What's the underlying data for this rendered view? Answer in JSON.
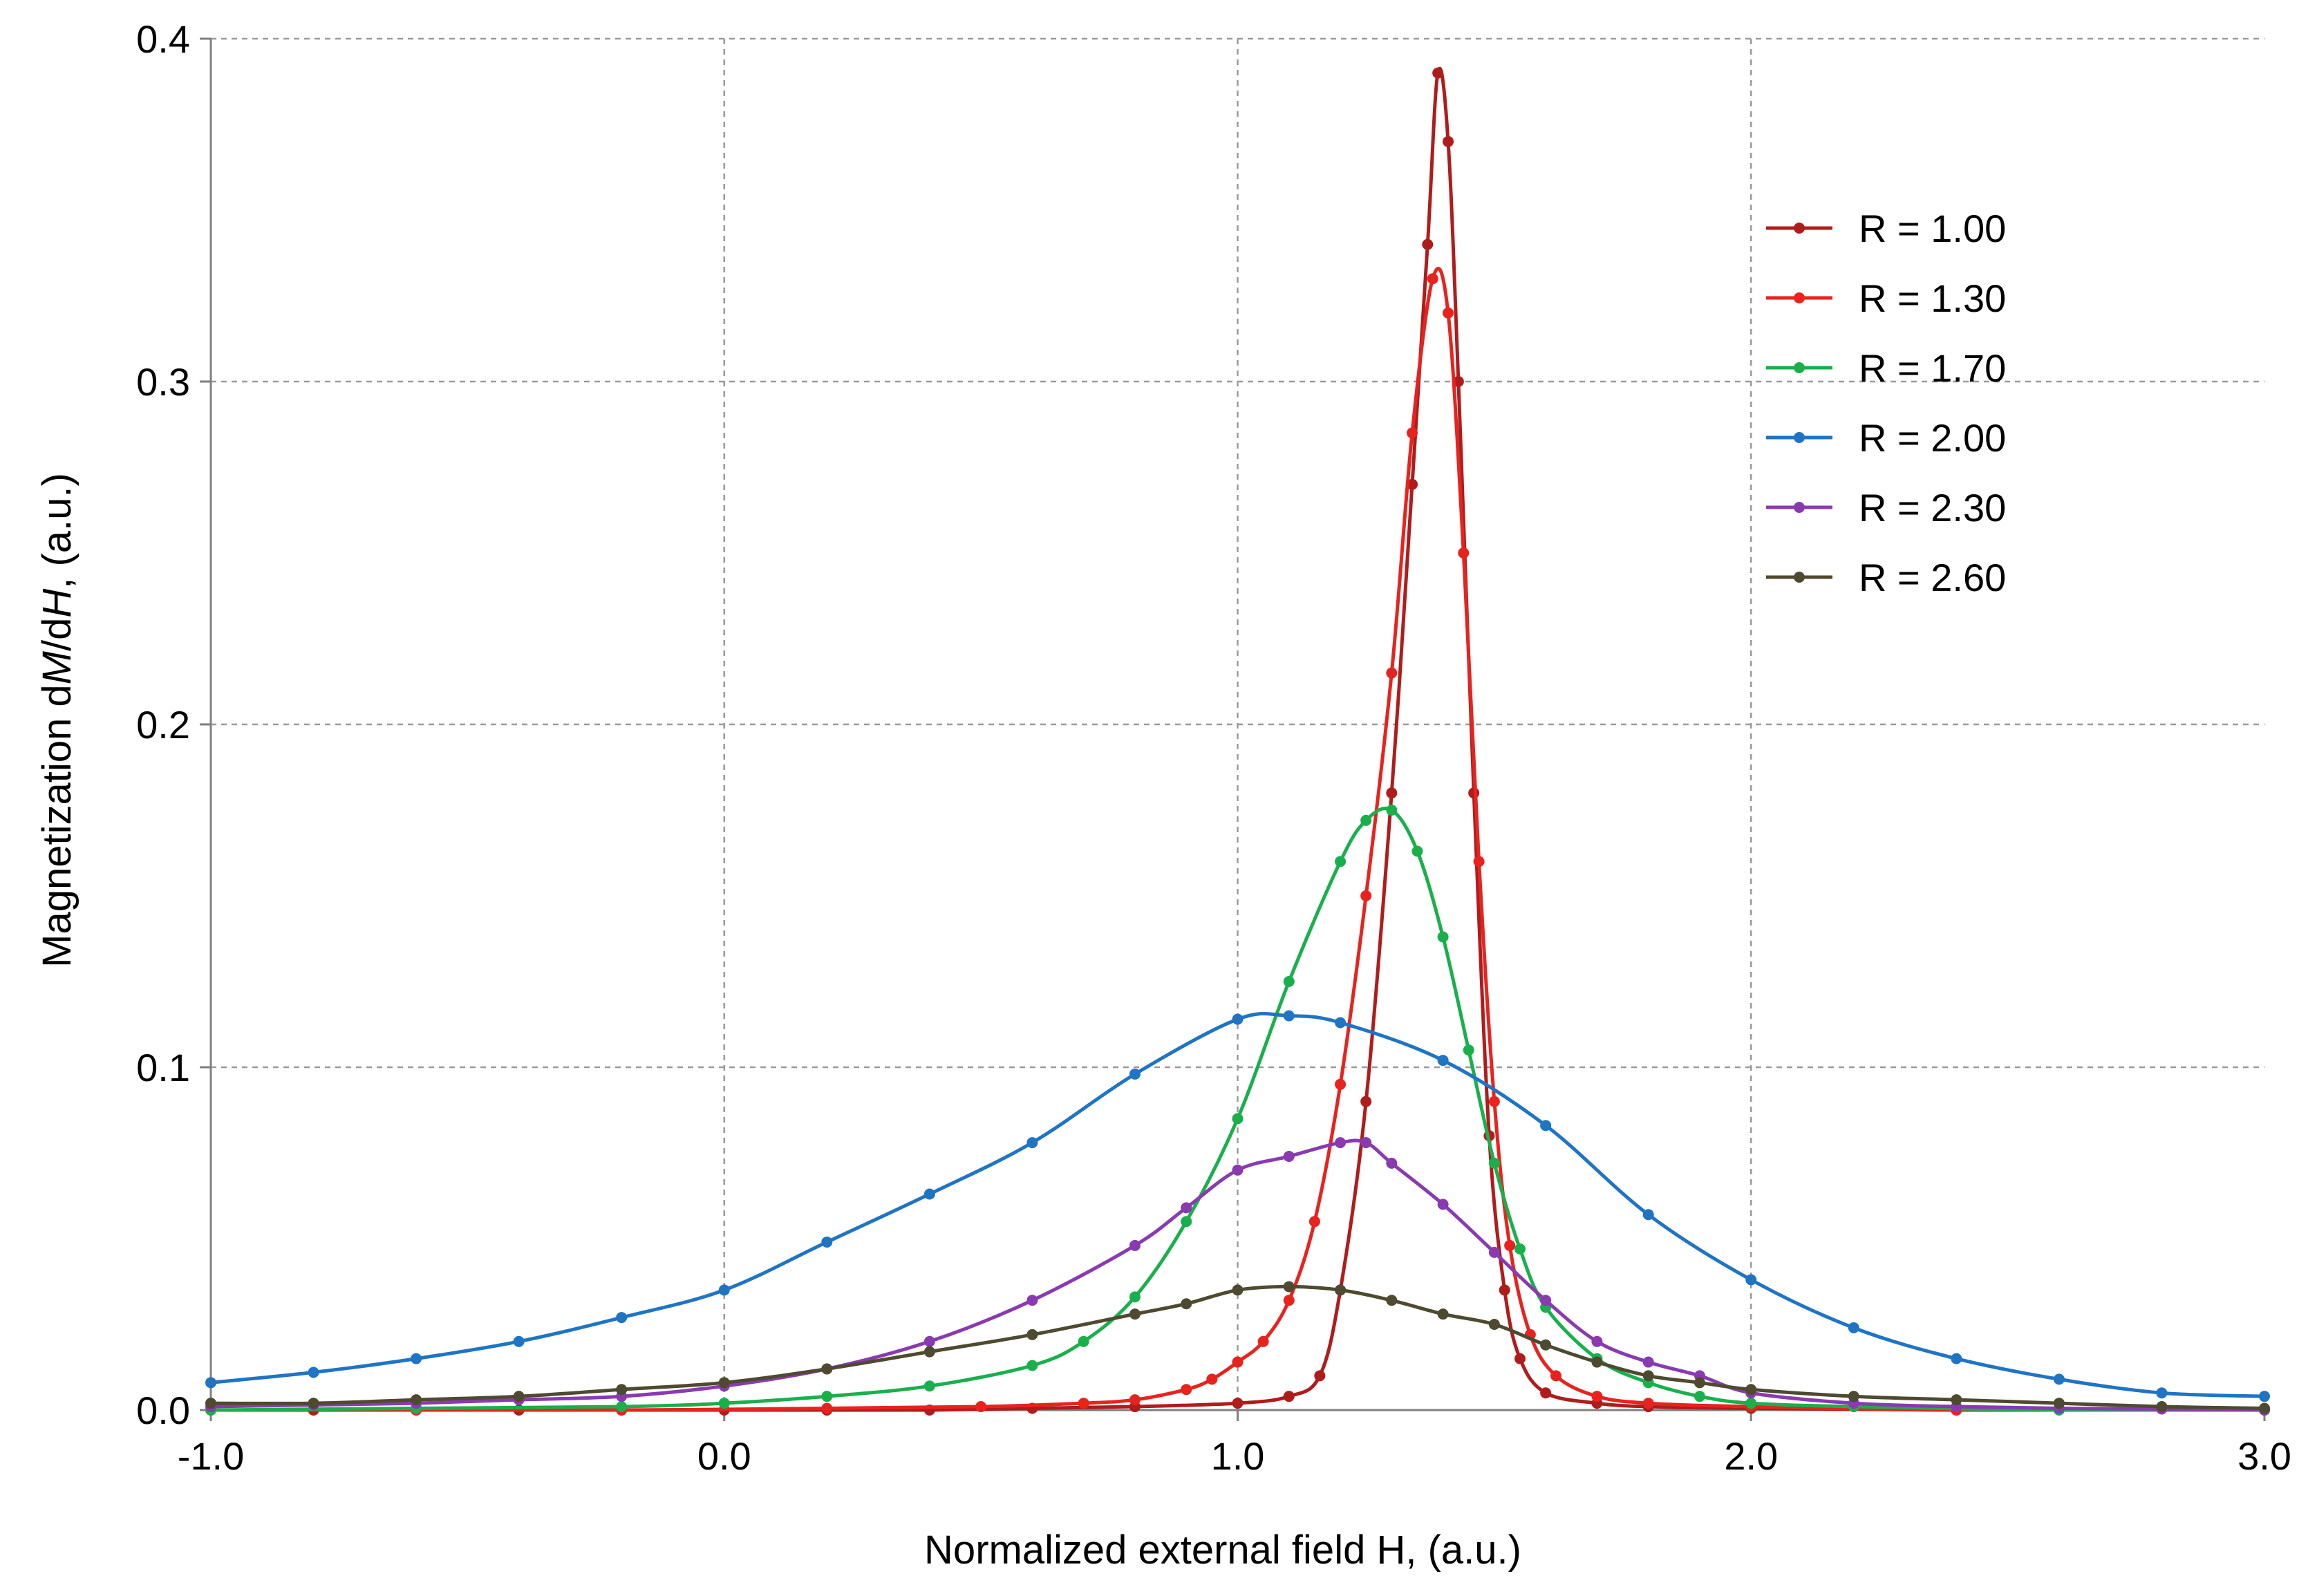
{
  "chart_data": {
    "type": "line",
    "title": "",
    "xlabel": "Normalized  external  field H,  (a.u.)",
    "ylabel_parts": [
      "Magnetization  d",
      "M",
      "/d",
      "H",
      ",  (a.u.)"
    ],
    "xlim": [
      -1.0,
      3.0
    ],
    "ylim": [
      0.0,
      0.4
    ],
    "xticks": [
      -1.0,
      0.0,
      1.0,
      2.0,
      3.0
    ],
    "xtick_labels": [
      "-1.0",
      "0.0",
      "1.0",
      "2.0",
      "3.0"
    ],
    "yticks": [
      0.0,
      0.1,
      0.2,
      0.3,
      0.4
    ],
    "ytick_labels": [
      "0.0",
      "0.1",
      "0.2",
      "0.3",
      "0.4"
    ],
    "grid": true,
    "legend_position": "top-right",
    "series": [
      {
        "name": "R = 1.00",
        "color": "#b01c1c",
        "x": [
          -1.0,
          -0.8,
          -0.6,
          -0.4,
          -0.2,
          0.0,
          0.2,
          0.4,
          0.6,
          0.8,
          1.0,
          1.1,
          1.16,
          1.2,
          1.25,
          1.3,
          1.34,
          1.37,
          1.39,
          1.41,
          1.43,
          1.46,
          1.49,
          1.52,
          1.55,
          1.6,
          1.7,
          1.8,
          2.0,
          2.4,
          3.0
        ],
        "y": [
          0.0,
          0.0,
          0.0,
          0.0,
          0.0,
          0.0,
          0.0,
          0.0,
          0.0005,
          0.001,
          0.002,
          0.004,
          0.01,
          0.035,
          0.09,
          0.18,
          0.27,
          0.34,
          0.39,
          0.37,
          0.3,
          0.18,
          0.08,
          0.035,
          0.015,
          0.005,
          0.002,
          0.001,
          0.0005,
          0.0,
          0.0
        ]
      },
      {
        "name": "R = 1.30",
        "color": "#e8231e",
        "x": [
          -1.0,
          -0.6,
          -0.2,
          0.2,
          0.5,
          0.7,
          0.8,
          0.9,
          0.95,
          1.0,
          1.05,
          1.1,
          1.15,
          1.2,
          1.25,
          1.3,
          1.34,
          1.38,
          1.41,
          1.44,
          1.47,
          1.5,
          1.53,
          1.57,
          1.62,
          1.7,
          1.8,
          2.0,
          2.4,
          3.0
        ],
        "y": [
          0.0,
          0.0,
          0.0,
          0.0005,
          0.001,
          0.002,
          0.003,
          0.006,
          0.009,
          0.014,
          0.02,
          0.032,
          0.055,
          0.095,
          0.15,
          0.215,
          0.285,
          0.33,
          0.32,
          0.25,
          0.16,
          0.09,
          0.048,
          0.022,
          0.01,
          0.004,
          0.002,
          0.001,
          0.0,
          0.0
        ]
      },
      {
        "name": "R = 1.70",
        "color": "#19b04c",
        "x": [
          -1.0,
          -0.6,
          -0.2,
          0.0,
          0.2,
          0.4,
          0.6,
          0.7,
          0.8,
          0.9,
          1.0,
          1.1,
          1.2,
          1.25,
          1.3,
          1.35,
          1.4,
          1.45,
          1.5,
          1.55,
          1.6,
          1.7,
          1.8,
          1.9,
          2.0,
          2.2,
          2.6,
          3.0
        ],
        "y": [
          0.0,
          0.0005,
          0.001,
          0.002,
          0.004,
          0.007,
          0.013,
          0.02,
          0.033,
          0.055,
          0.085,
          0.125,
          0.16,
          0.172,
          0.175,
          0.163,
          0.138,
          0.105,
          0.072,
          0.047,
          0.03,
          0.015,
          0.008,
          0.004,
          0.002,
          0.001,
          0.0,
          0.0
        ]
      },
      {
        "name": "R = 2.00",
        "color": "#1f74c4",
        "x": [
          -1.0,
          -0.8,
          -0.6,
          -0.4,
          -0.2,
          0.0,
          0.2,
          0.4,
          0.6,
          0.8,
          1.0,
          1.1,
          1.2,
          1.4,
          1.6,
          1.8,
          2.0,
          2.2,
          2.4,
          2.6,
          2.8,
          3.0
        ],
        "y": [
          0.008,
          0.011,
          0.015,
          0.02,
          0.027,
          0.035,
          0.049,
          0.063,
          0.078,
          0.098,
          0.114,
          0.115,
          0.113,
          0.102,
          0.083,
          0.057,
          0.038,
          0.024,
          0.015,
          0.009,
          0.005,
          0.004
        ]
      },
      {
        "name": "R = 2.30",
        "color": "#8a3ab0",
        "x": [
          -1.0,
          -0.8,
          -0.6,
          -0.4,
          -0.2,
          0.0,
          0.2,
          0.4,
          0.6,
          0.8,
          0.9,
          1.0,
          1.1,
          1.2,
          1.25,
          1.3,
          1.4,
          1.5,
          1.6,
          1.7,
          1.8,
          1.9,
          2.0,
          2.2,
          2.4,
          2.6,
          2.8,
          3.0
        ],
        "y": [
          0.001,
          0.0015,
          0.002,
          0.003,
          0.004,
          0.007,
          0.012,
          0.02,
          0.032,
          0.048,
          0.059,
          0.07,
          0.074,
          0.078,
          0.078,
          0.072,
          0.06,
          0.046,
          0.032,
          0.02,
          0.014,
          0.01,
          0.005,
          0.002,
          0.001,
          0.0005,
          0.0003,
          0.0
        ]
      },
      {
        "name": "R = 2.60",
        "color": "#4e4a30",
        "x": [
          -1.0,
          -0.8,
          -0.6,
          -0.4,
          -0.2,
          0.0,
          0.2,
          0.4,
          0.6,
          0.8,
          0.9,
          1.0,
          1.1,
          1.2,
          1.3,
          1.4,
          1.5,
          1.6,
          1.7,
          1.8,
          1.9,
          2.0,
          2.2,
          2.4,
          2.6,
          2.8,
          3.0
        ],
        "y": [
          0.002,
          0.002,
          0.003,
          0.004,
          0.006,
          0.008,
          0.012,
          0.017,
          0.022,
          0.028,
          0.031,
          0.035,
          0.036,
          0.035,
          0.032,
          0.028,
          0.025,
          0.019,
          0.014,
          0.01,
          0.008,
          0.006,
          0.004,
          0.003,
          0.002,
          0.001,
          0.0005
        ]
      }
    ]
  }
}
